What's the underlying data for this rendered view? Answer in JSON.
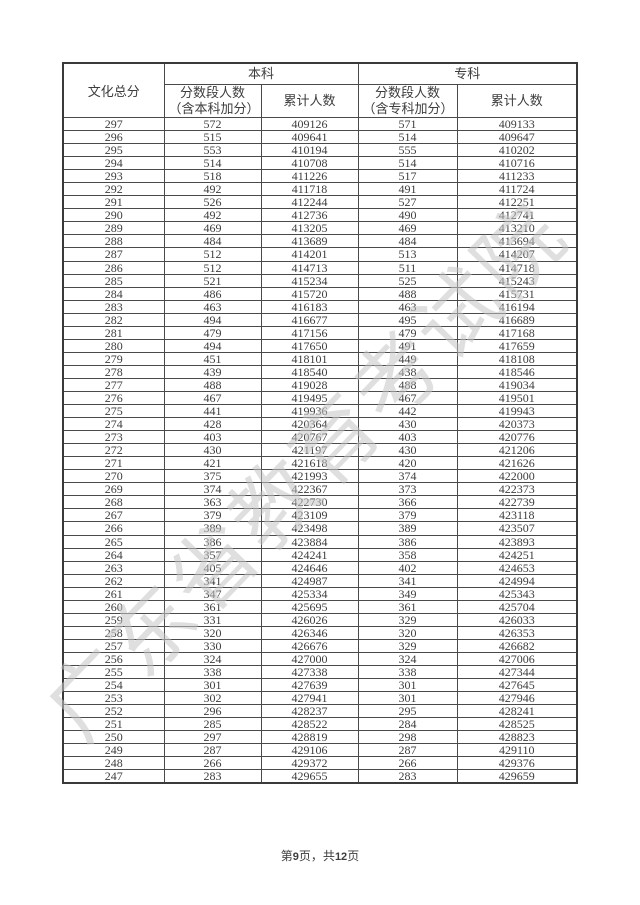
{
  "watermark": "广东省教育考试院",
  "footer": {
    "prefix": "第",
    "page": "9",
    "mid": "页，共",
    "total": "12",
    "suffix": "页"
  },
  "table": {
    "score_col_header": "文化总分",
    "groups": {
      "benke": "本科",
      "zhuanke": "专科"
    },
    "subheaders": {
      "benke_segment": "分数段人数（含本科加分）",
      "benke_cumulative": "累计人数",
      "zhuanke_segment": "分数段人数（含专科加分）",
      "zhuanke_cumulative": "累计人数"
    },
    "rows": [
      [
        297,
        572,
        409126,
        571,
        409133
      ],
      [
        296,
        515,
        409641,
        514,
        409647
      ],
      [
        295,
        553,
        410194,
        555,
        410202
      ],
      [
        294,
        514,
        410708,
        514,
        410716
      ],
      [
        293,
        518,
        411226,
        517,
        411233
      ],
      [
        292,
        492,
        411718,
        491,
        411724
      ],
      [
        291,
        526,
        412244,
        527,
        412251
      ],
      [
        290,
        492,
        412736,
        490,
        412741
      ],
      [
        289,
        469,
        413205,
        469,
        413210
      ],
      [
        288,
        484,
        413689,
        484,
        413694
      ],
      [
        287,
        512,
        414201,
        513,
        414207
      ],
      [
        286,
        512,
        414713,
        511,
        414718
      ],
      [
        285,
        521,
        415234,
        525,
        415243
      ],
      [
        284,
        486,
        415720,
        488,
        415731
      ],
      [
        283,
        463,
        416183,
        463,
        416194
      ],
      [
        282,
        494,
        416677,
        495,
        416689
      ],
      [
        281,
        479,
        417156,
        479,
        417168
      ],
      [
        280,
        494,
        417650,
        491,
        417659
      ],
      [
        279,
        451,
        418101,
        449,
        418108
      ],
      [
        278,
        439,
        418540,
        438,
        418546
      ],
      [
        277,
        488,
        419028,
        488,
        419034
      ],
      [
        276,
        467,
        419495,
        467,
        419501
      ],
      [
        275,
        441,
        419936,
        442,
        419943
      ],
      [
        274,
        428,
        420364,
        430,
        420373
      ],
      [
        273,
        403,
        420767,
        403,
        420776
      ],
      [
        272,
        430,
        421197,
        430,
        421206
      ],
      [
        271,
        421,
        421618,
        420,
        421626
      ],
      [
        270,
        375,
        421993,
        374,
        422000
      ],
      [
        269,
        374,
        422367,
        373,
        422373
      ],
      [
        268,
        363,
        422730,
        366,
        422739
      ],
      [
        267,
        379,
        423109,
        379,
        423118
      ],
      [
        266,
        389,
        423498,
        389,
        423507
      ],
      [
        265,
        386,
        423884,
        386,
        423893
      ],
      [
        264,
        357,
        424241,
        358,
        424251
      ],
      [
        263,
        405,
        424646,
        402,
        424653
      ],
      [
        262,
        341,
        424987,
        341,
        424994
      ],
      [
        261,
        347,
        425334,
        349,
        425343
      ],
      [
        260,
        361,
        425695,
        361,
        425704
      ],
      [
        259,
        331,
        426026,
        329,
        426033
      ],
      [
        258,
        320,
        426346,
        320,
        426353
      ],
      [
        257,
        330,
        426676,
        329,
        426682
      ],
      [
        256,
        324,
        427000,
        324,
        427006
      ],
      [
        255,
        338,
        427338,
        338,
        427344
      ],
      [
        254,
        301,
        427639,
        301,
        427645
      ],
      [
        253,
        302,
        427941,
        301,
        427946
      ],
      [
        252,
        296,
        428237,
        295,
        428241
      ],
      [
        251,
        285,
        428522,
        284,
        428525
      ],
      [
        250,
        297,
        428819,
        298,
        428823
      ],
      [
        249,
        287,
        429106,
        287,
        429110
      ],
      [
        248,
        266,
        429372,
        266,
        429376
      ],
      [
        247,
        283,
        429655,
        283,
        429659
      ]
    ]
  }
}
